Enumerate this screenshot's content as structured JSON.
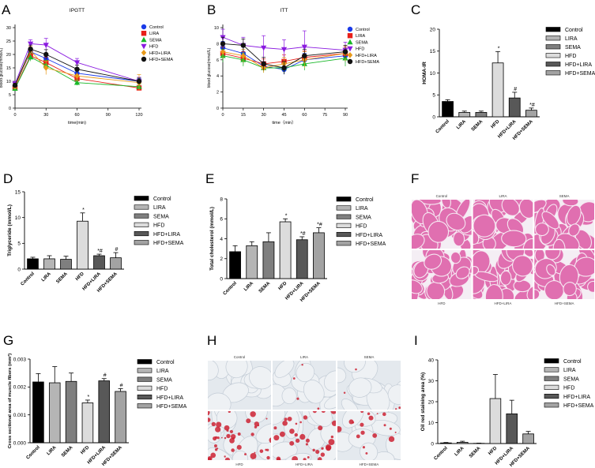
{
  "panel_letters": [
    "A",
    "B",
    "C",
    "D",
    "E",
    "F",
    "G",
    "H",
    "I"
  ],
  "groups": [
    "Control",
    "LIRA",
    "SEMA",
    "HFD",
    "HFD+LIRA",
    "HFD+SEMA"
  ],
  "chart_data": [
    {
      "id": "A",
      "type": "line",
      "title": "IPGTT",
      "xlabel": "time(min)",
      "ylabel": "blood glucose(mmol/L)",
      "x": [
        0,
        15,
        30,
        60,
        120
      ],
      "xlim": [
        0,
        120
      ],
      "ylim": [
        0,
        30
      ],
      "xticks": [
        0,
        30,
        60,
        90,
        120
      ],
      "yticks": [
        0,
        5,
        10,
        15,
        20,
        25,
        30
      ],
      "series": [
        {
          "name": "Control",
          "color": "#1a3ae8",
          "marker": "circle",
          "values": [
            8.2,
            21.0,
            18.5,
            13.0,
            10.0
          ],
          "err": [
            0.8,
            1.5,
            1.5,
            1.5,
            1.0
          ]
        },
        {
          "name": "LIRA",
          "color": "#e8201a",
          "marker": "square",
          "values": [
            7.5,
            19.5,
            17.0,
            11.0,
            7.5
          ],
          "err": [
            0.8,
            1.5,
            2.0,
            1.5,
            1.0
          ]
        },
        {
          "name": "SEMA",
          "color": "#1ab82a",
          "marker": "triangle-up",
          "values": [
            7.3,
            19.0,
            16.0,
            9.5,
            8.0
          ],
          "err": [
            0.8,
            1.5,
            1.8,
            1.0,
            1.0
          ]
        },
        {
          "name": "HFD",
          "color": "#8a1ae0",
          "marker": "triangle-down",
          "values": [
            9.0,
            24.0,
            23.5,
            17.0,
            10.0
          ],
          "err": [
            1.0,
            1.5,
            2.5,
            1.5,
            1.5
          ]
        },
        {
          "name": "HFD+LIRA",
          "color": "#e89a1a",
          "marker": "diamond",
          "values": [
            8.0,
            21.5,
            15.0,
            12.0,
            9.5
          ],
          "err": [
            0.8,
            1.5,
            2.5,
            2.0,
            3.0
          ]
        },
        {
          "name": "HFD+SEMA",
          "color": "#111111",
          "marker": "circle",
          "values": [
            8.5,
            22.0,
            20.0,
            14.5,
            10.0
          ],
          "err": [
            0.8,
            1.5,
            1.8,
            1.5,
            1.2
          ]
        }
      ]
    },
    {
      "id": "B",
      "type": "line",
      "title": "ITT",
      "xlabel": "time（min）",
      "ylabel": "blood glucose(mmol/L)",
      "x": [
        0,
        15,
        30,
        45,
        60,
        90
      ],
      "xlim": [
        0,
        90
      ],
      "ylim": [
        0,
        10
      ],
      "xticks": [
        0,
        15,
        30,
        45,
        60,
        75,
        90
      ],
      "yticks": [
        0,
        2,
        4,
        6,
        8,
        10
      ],
      "series": [
        {
          "name": "Control",
          "color": "#1a3ae8",
          "marker": "circle",
          "values": [
            7.5,
            6.8,
            5.2,
            4.8,
            6.0,
            6.5
          ],
          "err": [
            0.8,
            0.8,
            0.6,
            0.6,
            0.8,
            0.8
          ]
        },
        {
          "name": "LIRA",
          "color": "#e8201a",
          "marker": "square",
          "values": [
            6.8,
            6.2,
            5.5,
            5.8,
            6.3,
            6.8
          ],
          "err": [
            0.8,
            0.8,
            0.6,
            0.8,
            0.8,
            0.8
          ]
        },
        {
          "name": "SEMA",
          "color": "#1ab82a",
          "marker": "triangle-up",
          "values": [
            6.5,
            6.0,
            5.0,
            5.0,
            5.5,
            6.2
          ],
          "err": [
            0.8,
            0.8,
            0.6,
            0.6,
            0.8,
            1.0
          ]
        },
        {
          "name": "HFD",
          "color": "#8a1ae0",
          "marker": "triangle-down",
          "values": [
            8.8,
            7.8,
            7.5,
            7.3,
            7.6,
            7.2
          ],
          "err": [
            1.0,
            1.0,
            1.5,
            1.2,
            2.0,
            1.0
          ]
        },
        {
          "name": "HFD+LIRA",
          "color": "#e89a1a",
          "marker": "diamond",
          "values": [
            7.0,
            6.5,
            5.0,
            5.5,
            6.0,
            6.8
          ],
          "err": [
            0.8,
            0.8,
            0.6,
            0.8,
            1.0,
            1.0
          ]
        },
        {
          "name": "HFD+SEMA",
          "color": "#111111",
          "marker": "circle",
          "values": [
            8.0,
            7.8,
            5.5,
            5.0,
            6.5,
            7.0
          ],
          "err": [
            0.8,
            0.8,
            0.8,
            0.8,
            0.8,
            0.8
          ]
        }
      ]
    },
    {
      "id": "C",
      "type": "bar",
      "ylabel": "HOMA-IR",
      "ylim": [
        0,
        20
      ],
      "yticks": [
        0,
        5,
        10,
        15,
        20
      ],
      "categories": [
        "Control",
        "LIRA",
        "SEMA",
        "HFD",
        "HFD+LIRA",
        "HFD+SEMA"
      ],
      "values": [
        3.5,
        1.0,
        1.0,
        12.3,
        4.3,
        1.5
      ],
      "err": [
        0.4,
        0.3,
        0.3,
        2.6,
        1.3,
        0.5
      ],
      "annotations": [
        "",
        "",
        "",
        "*",
        "#",
        "*#"
      ]
    },
    {
      "id": "D",
      "type": "bar",
      "ylabel": "Triglyceride (mmol/L)",
      "ylim": [
        0,
        15
      ],
      "yticks": [
        0,
        5,
        10,
        15
      ],
      "categories": [
        "Control",
        "LIRA",
        "SEMA",
        "HFD",
        "HFD+LIRA",
        "HFD+SEMA"
      ],
      "values": [
        2.0,
        2.0,
        1.9,
        9.3,
        2.6,
        2.2
      ],
      "err": [
        0.3,
        0.6,
        0.6,
        1.6,
        0.3,
        1.0
      ],
      "annotations": [
        "",
        "",
        "",
        "*",
        "*#",
        "#"
      ]
    },
    {
      "id": "E",
      "type": "bar",
      "ylabel": "Total cholesterol (mmol/L)",
      "ylim": [
        0,
        8
      ],
      "yticks": [
        0,
        2,
        4,
        6,
        8
      ],
      "categories": [
        "Control",
        "LIRA",
        "SEMA",
        "HFD",
        "HFD+LIRA",
        "HFD+SEMA"
      ],
      "values": [
        2.7,
        3.3,
        3.7,
        5.7,
        3.9,
        4.6
      ],
      "err": [
        0.6,
        0.4,
        0.9,
        0.3,
        0.3,
        0.5
      ],
      "annotations": [
        "",
        "",
        "",
        "*",
        "*#",
        "*#"
      ]
    },
    {
      "id": "G",
      "type": "bar",
      "ylabel": "Cross sectional area of muscle fibers (mm²)",
      "ylim": [
        0,
        0.003
      ],
      "yticks": [
        0,
        0.001,
        0.002,
        0.003
      ],
      "ytick_labels": [
        "0.000",
        "0.001",
        "0.002",
        "0.003"
      ],
      "categories": [
        "Control",
        "LIRA",
        "SEMA",
        "HFD",
        "HFD+LIRA",
        "HFD+SEMA"
      ],
      "values": [
        0.00218,
        0.00215,
        0.0022,
        0.00143,
        0.00222,
        0.00184
      ],
      "err": [
        0.0003,
        0.00058,
        0.0003,
        0.0001,
        8e-05,
        0.0001
      ],
      "annotations": [
        "",
        "",
        "",
        "*",
        "#",
        "#"
      ]
    },
    {
      "id": "I",
      "type": "bar",
      "ylabel": "Oil red staining area (%)",
      "ylim": [
        0,
        40
      ],
      "yticks": [
        0,
        10,
        20,
        30,
        40
      ],
      "categories": [
        "Control",
        "LIRA",
        "SEMA",
        "HFD",
        "HFD+LIRA",
        "HFD+SEMA"
      ],
      "values": [
        0.3,
        0.6,
        0.1,
        21.5,
        14.2,
        4.6
      ],
      "err": [
        0.2,
        0.5,
        0.1,
        11.5,
        6.5,
        1.2
      ],
      "annotations": [
        "",
        "",
        "",
        "",
        "",
        ""
      ]
    }
  ],
  "micrographs": {
    "F": {
      "top": [
        "Control",
        "LIRA",
        "SEMA"
      ],
      "bottom": [
        "HFD",
        "HFD+LIRA",
        "HFD+SEMA"
      ]
    },
    "H": {
      "top": [
        "Control",
        "LIRA",
        "SEMA"
      ],
      "bottom": [
        "HFD",
        "HFD+LIRA",
        "HFD+SEMA"
      ]
    }
  },
  "colors": {
    "Control": "#000000",
    "LIRA": "#b5b5b5",
    "SEMA": "#7f7f7f",
    "HFD": "#dcdcdc",
    "HFD+LIRA": "#585858",
    "HFD+SEMA": "#a3a3a3",
    "he_stain": "#e06fb0",
    "oil_red": "#cc2233"
  }
}
